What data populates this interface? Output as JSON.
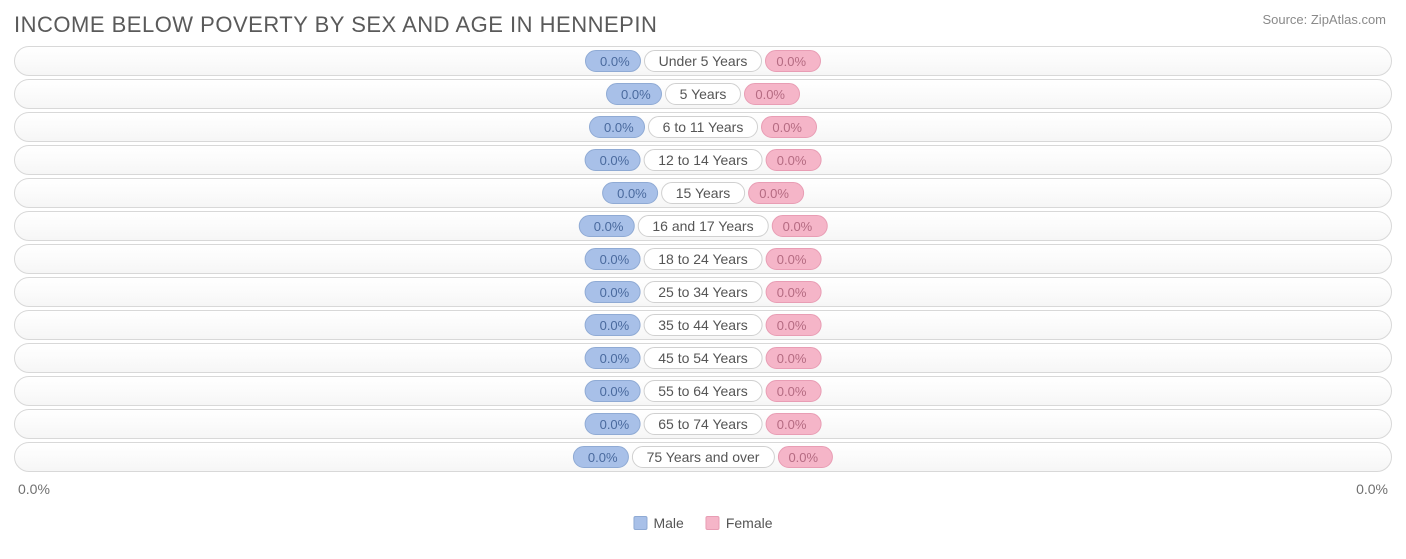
{
  "title": "INCOME BELOW POVERTY BY SEX AND AGE IN HENNEPIN",
  "source": "Source: ZipAtlas.com",
  "chart": {
    "type": "diverging-bar",
    "background_color": "#ffffff",
    "row_bg_gradient": [
      "#ffffff",
      "#f6f6f6"
    ],
    "row_border_color": "#d8d8d8",
    "row_border_radius": 15,
    "male_color": "#a8c0e8",
    "male_border": "#8faad4",
    "male_text_color": "#4a6a9e",
    "female_color": "#f5b5c8",
    "female_border": "#e89db4",
    "female_text_color": "#b56b82",
    "category_bg": "#ffffff",
    "category_border": "#d0d0d0",
    "category_text_color": "#555555",
    "label_fontsize": 14,
    "value_fontsize": 13,
    "categories": [
      {
        "label": "Under 5 Years",
        "male_value": 0.0,
        "male_display": "0.0%",
        "female_value": 0.0,
        "female_display": "0.0%"
      },
      {
        "label": "5 Years",
        "male_value": 0.0,
        "male_display": "0.0%",
        "female_value": 0.0,
        "female_display": "0.0%"
      },
      {
        "label": "6 to 11 Years",
        "male_value": 0.0,
        "male_display": "0.0%",
        "female_value": 0.0,
        "female_display": "0.0%"
      },
      {
        "label": "12 to 14 Years",
        "male_value": 0.0,
        "male_display": "0.0%",
        "female_value": 0.0,
        "female_display": "0.0%"
      },
      {
        "label": "15 Years",
        "male_value": 0.0,
        "male_display": "0.0%",
        "female_value": 0.0,
        "female_display": "0.0%"
      },
      {
        "label": "16 and 17 Years",
        "male_value": 0.0,
        "male_display": "0.0%",
        "female_value": 0.0,
        "female_display": "0.0%"
      },
      {
        "label": "18 to 24 Years",
        "male_value": 0.0,
        "male_display": "0.0%",
        "female_value": 0.0,
        "female_display": "0.0%"
      },
      {
        "label": "25 to 34 Years",
        "male_value": 0.0,
        "male_display": "0.0%",
        "female_value": 0.0,
        "female_display": "0.0%"
      },
      {
        "label": "35 to 44 Years",
        "male_value": 0.0,
        "male_display": "0.0%",
        "female_value": 0.0,
        "female_display": "0.0%"
      },
      {
        "label": "45 to 54 Years",
        "male_value": 0.0,
        "male_display": "0.0%",
        "female_value": 0.0,
        "female_display": "0.0%"
      },
      {
        "label": "55 to 64 Years",
        "male_value": 0.0,
        "male_display": "0.0%",
        "female_value": 0.0,
        "female_display": "0.0%"
      },
      {
        "label": "65 to 74 Years",
        "male_value": 0.0,
        "male_display": "0.0%",
        "female_value": 0.0,
        "female_display": "0.0%"
      },
      {
        "label": "75 Years and over",
        "male_value": 0.0,
        "male_display": "0.0%",
        "female_value": 0.0,
        "female_display": "0.0%"
      }
    ],
    "axis": {
      "left_label": "0.0%",
      "right_label": "0.0%",
      "min": 0,
      "max": 0
    },
    "legend": [
      {
        "label": "Male",
        "color": "#a8c0e8"
      },
      {
        "label": "Female",
        "color": "#f5b5c8"
      }
    ]
  }
}
